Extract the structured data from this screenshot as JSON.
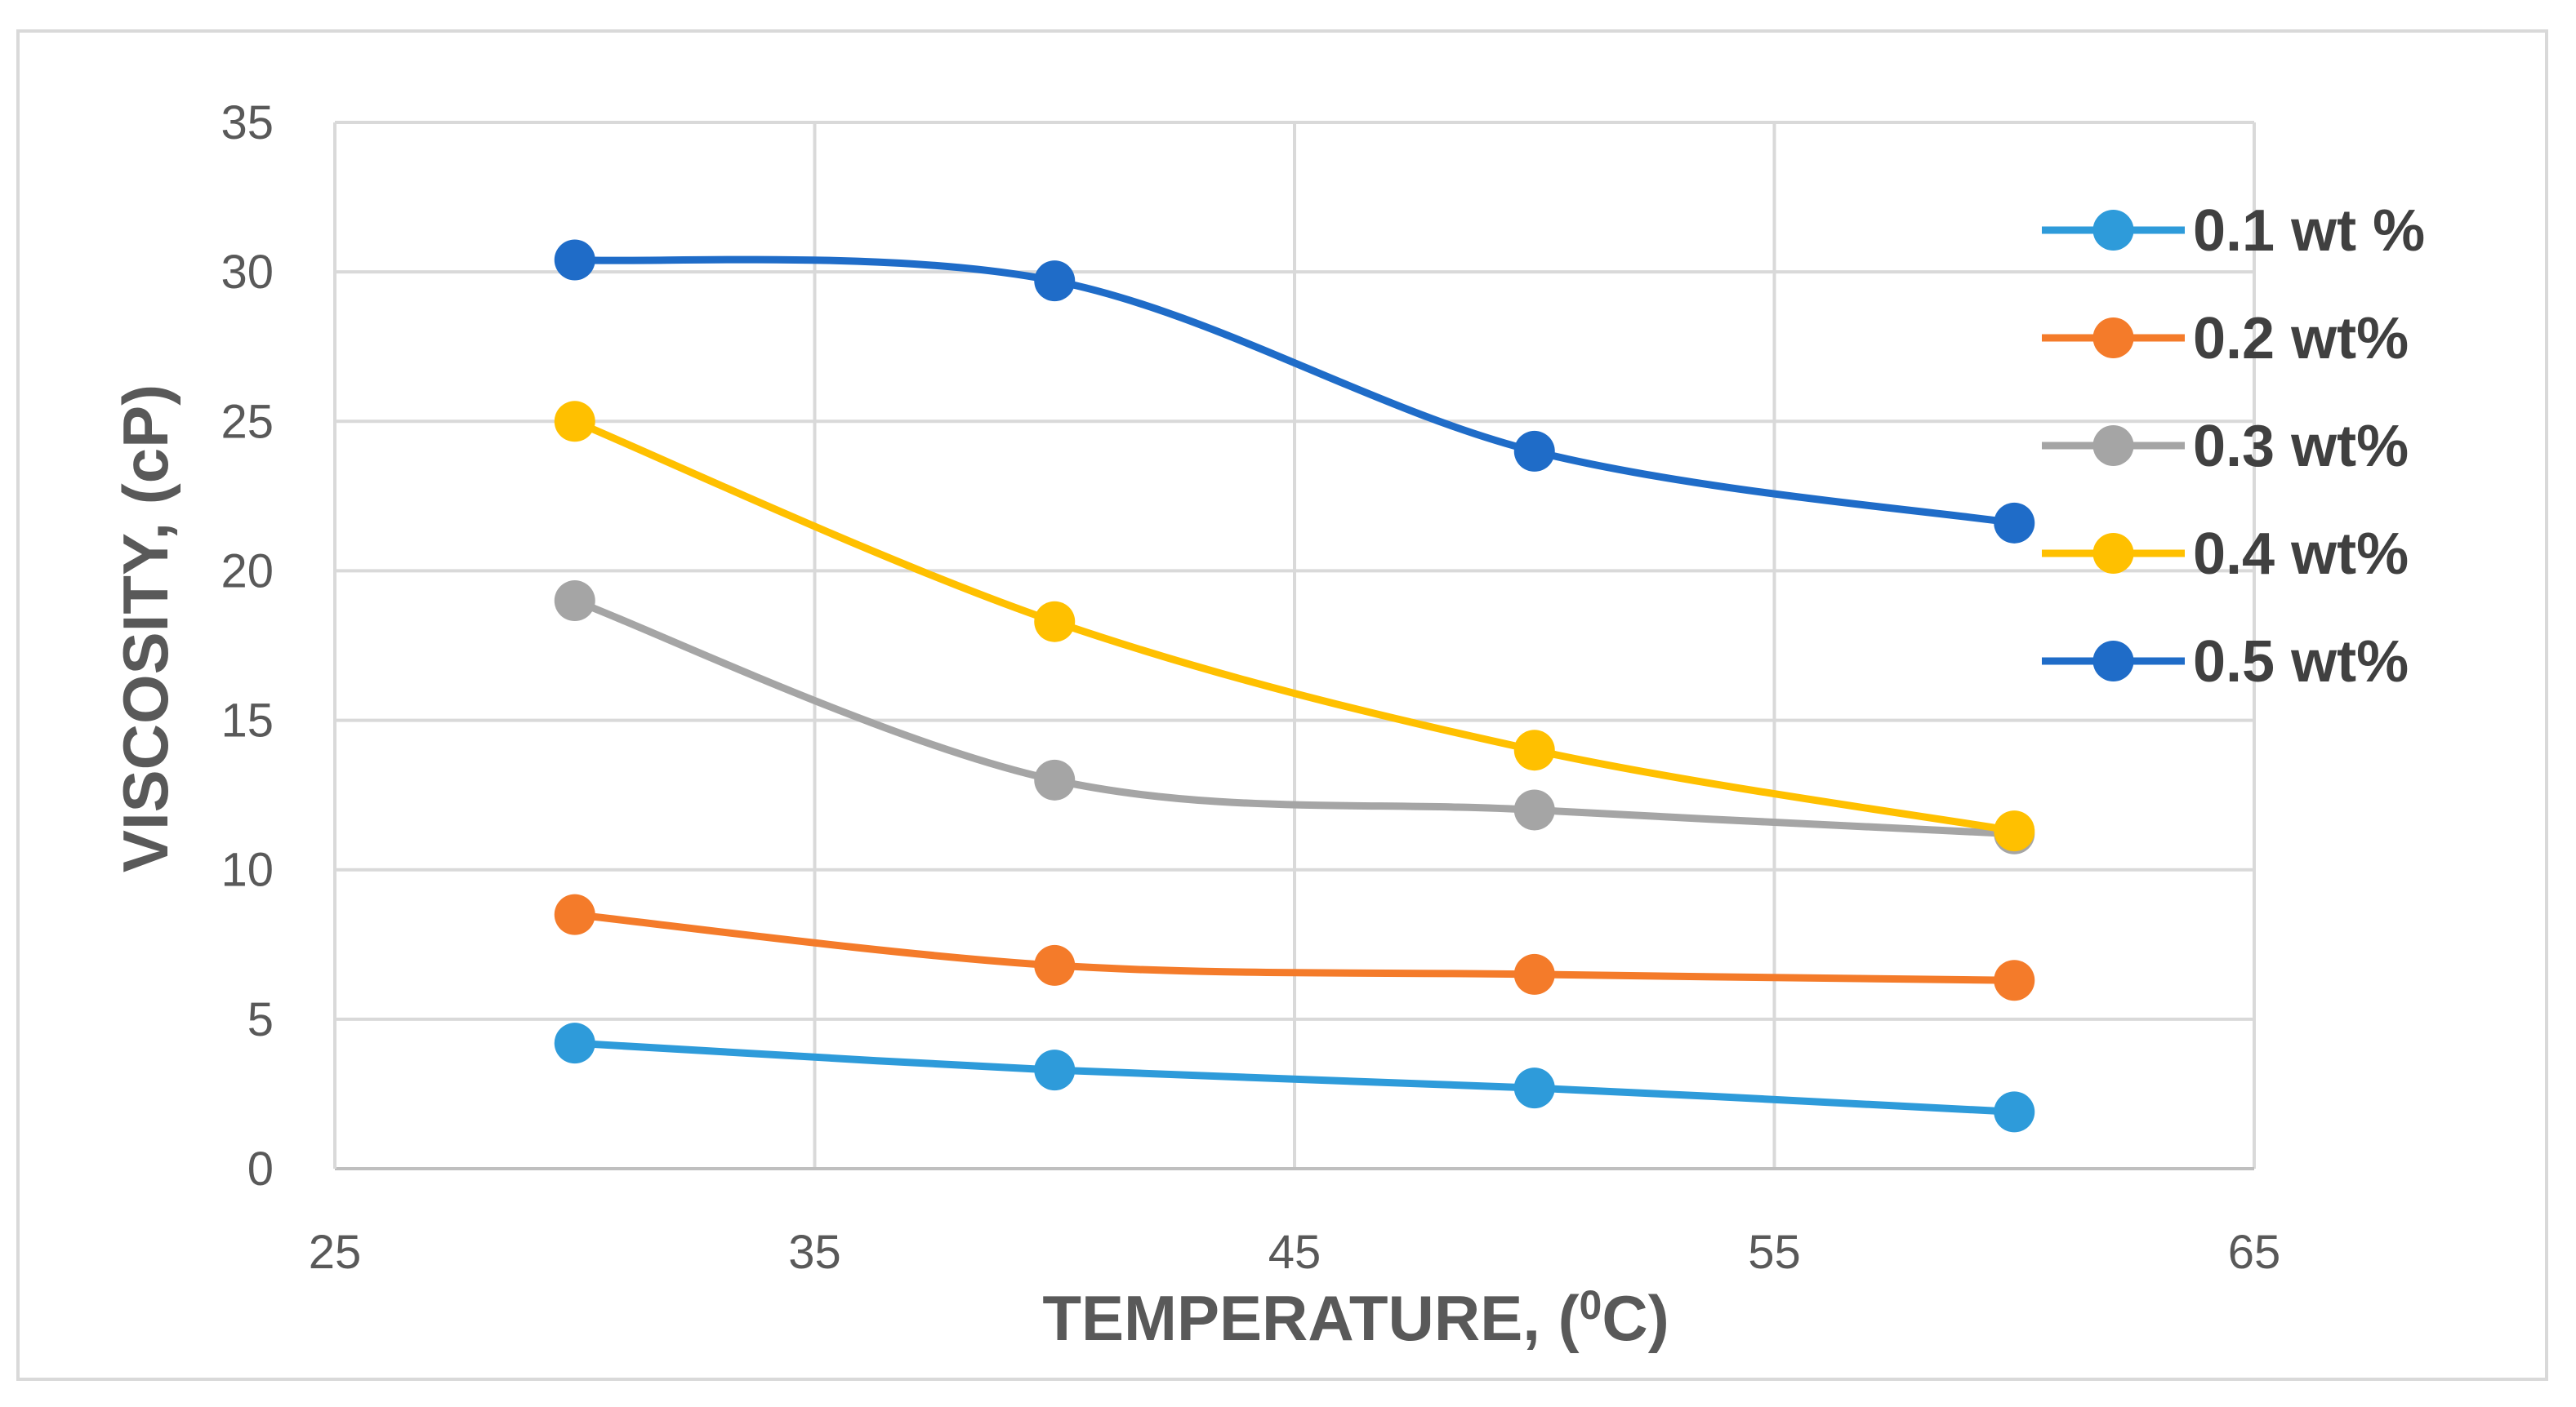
{
  "chart_data": {
    "type": "line",
    "title": "",
    "xlabel_main": "TEMPERATURE, (",
    "xlabel_sup": "0",
    "xlabel_tail": "C)",
    "ylabel": "VISCOSITY, (cP)",
    "xlim": [
      25,
      65
    ],
    "ylim": [
      0,
      35
    ],
    "xticks": [
      25,
      35,
      45,
      55,
      65
    ],
    "yticks": [
      0,
      5,
      10,
      15,
      20,
      25,
      30,
      35
    ],
    "grid": true,
    "legend_position": "right",
    "x": [
      30,
      40,
      50,
      60
    ],
    "series": [
      {
        "name": "0.1 wt %",
        "color": "#2E9BDA",
        "values": [
          4.2,
          3.3,
          2.7,
          1.9
        ]
      },
      {
        "name": "0.2 wt%",
        "color": "#F47B2A",
        "values": [
          8.5,
          6.8,
          6.5,
          6.3
        ]
      },
      {
        "name": "0.3 wt%",
        "color": "#A5A5A5",
        "values": [
          19.0,
          13.0,
          12.0,
          11.2
        ]
      },
      {
        "name": "0.4 wt%",
        "color": "#FFC000",
        "values": [
          25.0,
          18.3,
          14.0,
          11.3
        ]
      },
      {
        "name": "0.5 wt%",
        "color": "#1F6CC8",
        "values": [
          30.4,
          29.7,
          24.0,
          21.6
        ]
      }
    ]
  }
}
